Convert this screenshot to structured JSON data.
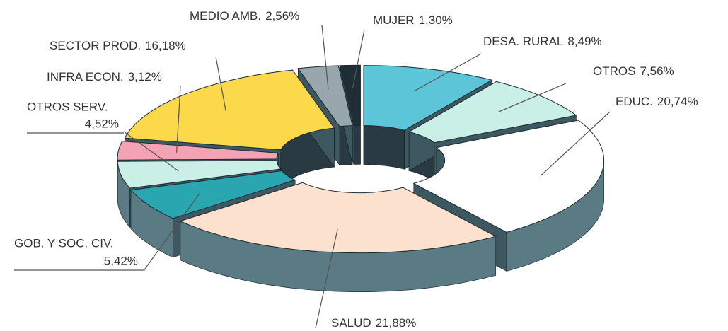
{
  "chart_data": {
    "type": "donut",
    "categories": [
      "DESA. RURAL",
      "OTROS",
      "EDUC.",
      "SALUD",
      "GOB. Y SOC. CIV.",
      "OTROS SERV.",
      "INFRA ECON.",
      "SECTOR PROD.",
      "MEDIO AMB.",
      "MUJER"
    ],
    "values": [
      8.49,
      7.56,
      20.74,
      21.88,
      5.42,
      4.52,
      3.12,
      16.18,
      2.56,
      1.3
    ],
    "value_labels": [
      "8,49%",
      "7,56%",
      "20,74%",
      "21,88%",
      "5,42%",
      "4,52%",
      "3,12%",
      "16,18%",
      "2,56%",
      "1,30%"
    ],
    "colors": [
      "#5cc6d8",
      "#c9efe6",
      "#ffffff",
      "#fde1cf",
      "#2aa6b0",
      "#c9efe6",
      "#f4a3b4",
      "#fcd84b",
      "#98a6ad",
      "#1f2d35"
    ]
  }
}
